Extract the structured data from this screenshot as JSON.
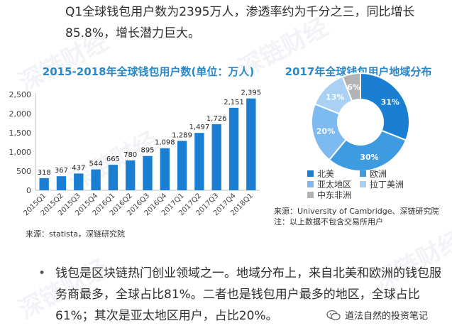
{
  "intro_text": "Q1全球钱包用户数为2395万人，渗透率约为千分之三，同比增长85.8%，增长潜力巨大。",
  "watermark_text": "深链财经",
  "colors": {
    "bar": "#1a7fd2",
    "title": "#2a87c8",
    "na": "#1a7fd2",
    "eu": "#3f9be0",
    "ap": "#7cbaf0",
    "la": "#a9d1f4",
    "me": "#b3b3b3"
  },
  "chart_data": [
    {
      "type": "bar",
      "title": "2015-2018年全球钱包用户数(单位：万人)",
      "categories": [
        "2015Q1",
        "2015Q2",
        "2015Q3",
        "2015Q4",
        "2016Q1",
        "2016Q2",
        "2016Q3",
        "2016Q4",
        "2017Q1",
        "2017Q2",
        "2017Q3",
        "2017Q4",
        "2018Q1"
      ],
      "values": [
        318,
        367,
        437,
        544,
        665,
        780,
        895,
        1098,
        1289,
        1497,
        1726,
        2151,
        2395
      ],
      "value_labels": [
        "318",
        "367",
        "437",
        "544",
        "665",
        "780",
        "895",
        "1,098",
        "1,289",
        "1,497",
        "1,726",
        "2,151",
        "2,395"
      ],
      "ylim": [
        0,
        2500
      ],
      "yticks": [
        "2,500",
        "2,000",
        "1,500",
        "1,000",
        "500",
        "0"
      ],
      "ytick_values": [
        2500,
        2000,
        1500,
        1000,
        500,
        0
      ],
      "source": "来源：statista，深链研究院"
    },
    {
      "type": "pie",
      "title": "2017年全球钱包用户地域分布",
      "slices": [
        {
          "name": "北美",
          "value": 31,
          "label": "31%",
          "color_key": "na"
        },
        {
          "name": "欧洲",
          "value": 30,
          "label": "30%",
          "color_key": "eu"
        },
        {
          "name": "亚太地区",
          "value": 20,
          "label": "20%",
          "color_key": "ap"
        },
        {
          "name": "拉丁美洲",
          "value": 13,
          "label": "13%",
          "color_key": "la"
        },
        {
          "name": "中东非洲",
          "value": 6,
          "label": "6%",
          "color_key": "me"
        }
      ],
      "source_line1": "来源：University of Cambridge、深链研究院",
      "source_line2": "注：以上数据不包含交易所用户"
    }
  ],
  "bullet_text": "钱包是区块链热门创业领域之一。地域分布上，来自北美和欧洲的钱包服务商最多，全球占比81%。二者也是钱包用户最多的地区，全球占比61%；其次是亚太地区用户，占比20%。",
  "bullet_symbol": "•",
  "wechat_account": "道法自然的投资笔记"
}
